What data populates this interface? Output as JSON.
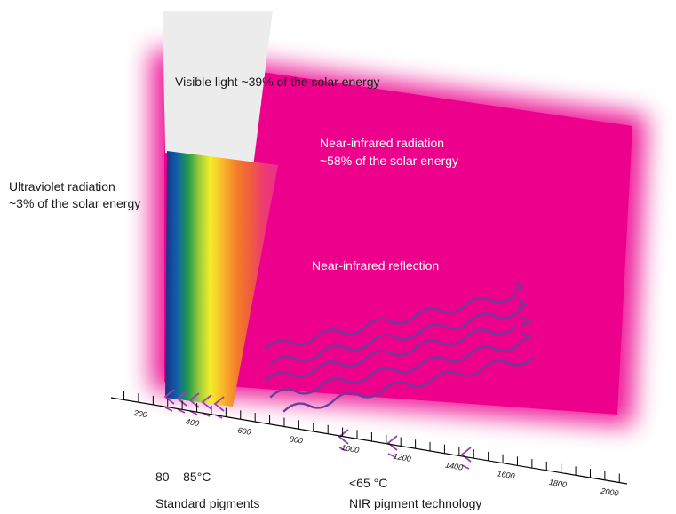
{
  "colors": {
    "nir_region": "#ec008c",
    "visible_beam": "#ececec",
    "wave_lines": "#6b3d97",
    "arrows": "#9b3fb1",
    "axis": "#000000"
  },
  "labels": {
    "visible": "Visible light ~39% of the solar energy",
    "nir_line1": "Near-infrared radiation",
    "nir_line2": "~58% of the solar energy",
    "uv_line1": "Ultraviolet radiation",
    "uv_line2": "~3% of the solar energy",
    "nir_reflection": "Near-infrared reflection",
    "standard_temp": "80 – 85°C",
    "standard_name": "Standard pigments",
    "nir_temp": "<65 °C",
    "nir_name": "NIR pigment technology"
  },
  "axis": {
    "ticks": [
      "200",
      "400",
      "600",
      "800",
      "1000",
      "1200",
      "1400",
      "1600",
      "1800",
      "2000"
    ]
  },
  "icons": {
    "wave": "wavy-line-icon",
    "arrow": "chevron-arrow-icon"
  }
}
